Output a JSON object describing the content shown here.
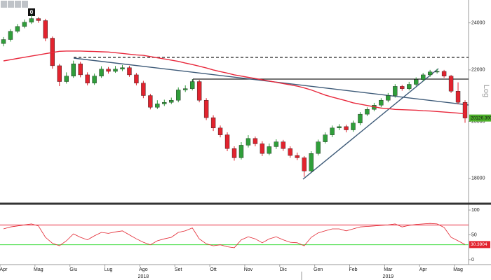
{
  "toolbar": {
    "badge": "0"
  },
  "chart_data": [
    {
      "type": "candlestick",
      "x": [
        "Apr",
        null,
        null,
        null,
        null,
        "Mag",
        null,
        null,
        null,
        null,
        "Giu",
        null,
        null,
        null,
        null,
        "Lug",
        null,
        null,
        null,
        null,
        "Ago",
        null,
        null,
        null,
        null,
        "Set",
        null,
        null,
        null,
        null,
        "Ott",
        null,
        null,
        null,
        null,
        "Nov",
        null,
        null,
        null,
        null,
        "Dic",
        null,
        null,
        null,
        null,
        "Gen",
        null,
        null,
        null,
        null,
        "Feb",
        null,
        null,
        null,
        null,
        "Mar",
        null,
        null,
        null,
        null,
        "Apr",
        null,
        null,
        null,
        null,
        "Mag",
        null
      ],
      "x_years": [
        null,
        null,
        null,
        null,
        null,
        null,
        null,
        null,
        null,
        null,
        null,
        null,
        null,
        null,
        null,
        null,
        null,
        null,
        null,
        null,
        "2018",
        null,
        null,
        null,
        null,
        null,
        null,
        null,
        null,
        null,
        null,
        null,
        null,
        null,
        null,
        null,
        null,
        null,
        null,
        null,
        null,
        null,
        null,
        null,
        null,
        null,
        null,
        null,
        null,
        null,
        null,
        null,
        null,
        null,
        null,
        "2019",
        null,
        null,
        null,
        null,
        null,
        null,
        null,
        null,
        null,
        null,
        null
      ],
      "open": [
        23100,
        23270,
        23630,
        23840,
        24030,
        24190,
        24100,
        23330,
        22170,
        21530,
        21750,
        22250,
        21800,
        21470,
        21750,
        22030,
        21940,
        22030,
        22090,
        21800,
        21470,
        20980,
        20530,
        20660,
        20720,
        20800,
        21200,
        21250,
        21530,
        20800,
        20140,
        19760,
        19510,
        19020,
        18700,
        19140,
        19380,
        19190,
        18850,
        19090,
        19260,
        19020,
        18780,
        18700,
        18250,
        18850,
        19260,
        19510,
        19760,
        19810,
        19690,
        19940,
        20270,
        20450,
        20610,
        20800,
        20980,
        21340,
        21250,
        21420,
        21610,
        21800,
        21920,
        21940,
        21750,
        21150,
        20720
      ],
      "high": [
        23380,
        23720,
        23950,
        24150,
        24350,
        24260,
        24180,
        23400,
        22250,
        21900,
        22380,
        22330,
        21900,
        21850,
        22150,
        22120,
        22160,
        22200,
        22170,
        21880,
        21560,
        21050,
        20800,
        20820,
        20900,
        21300,
        21380,
        21620,
        21600,
        20880,
        20230,
        19850,
        19600,
        19100,
        19250,
        19500,
        19450,
        19280,
        19200,
        19350,
        19330,
        19100,
        18880,
        18760,
        18930,
        19340,
        19600,
        19850,
        19900,
        19880,
        20030,
        20350,
        20530,
        20700,
        20880,
        21080,
        21430,
        21400,
        21520,
        21700,
        21880,
        22000,
        22040,
        22000,
        21800,
        21500,
        20800
      ],
      "low": [
        22980,
        23180,
        23550,
        23760,
        23950,
        24000,
        23200,
        22050,
        21350,
        21450,
        21680,
        21700,
        21380,
        21400,
        21680,
        21850,
        21880,
        21950,
        21720,
        21380,
        20880,
        20450,
        20460,
        20580,
        20650,
        20720,
        21120,
        21180,
        20720,
        20050,
        19650,
        19420,
        18930,
        18600,
        18640,
        19060,
        19100,
        18760,
        18790,
        19010,
        18940,
        18700,
        18620,
        18050,
        18200,
        18780,
        19200,
        19430,
        19680,
        19600,
        19620,
        19860,
        20200,
        20380,
        20530,
        20720,
        20900,
        21170,
        21180,
        21350,
        21540,
        21720,
        21850,
        21680,
        21080,
        20640,
        19950
      ],
      "close": [
        23270,
        23630,
        23840,
        24030,
        24190,
        24100,
        23330,
        22170,
        21530,
        21750,
        22250,
        21800,
        21470,
        21750,
        22030,
        21940,
        22030,
        22090,
        21800,
        21470,
        20980,
        20530,
        20660,
        20720,
        20800,
        21200,
        21250,
        21530,
        20800,
        20140,
        19760,
        19510,
        19020,
        18700,
        19140,
        19380,
        19190,
        18850,
        19090,
        19260,
        19020,
        18780,
        18700,
        18250,
        18850,
        19260,
        19510,
        19760,
        19810,
        19690,
        19940,
        20270,
        20450,
        20610,
        20800,
        20980,
        21340,
        21250,
        21420,
        21610,
        21800,
        21920,
        21940,
        21750,
        21150,
        20720,
        20126.3906
      ],
      "up_color": "#2f9e3a",
      "down_color": "#e2232e",
      "last_color": "#4caf2a",
      "overlays": [
        {
          "color": "#e8283c",
          "values": [
            22370,
            22420,
            22470,
            22520,
            22570,
            22620,
            22670,
            22720,
            22770,
            22780,
            22780,
            22780,
            22770,
            22760,
            22750,
            22740,
            22710,
            22680,
            22650,
            22620,
            22600,
            22550,
            22500,
            22450,
            22400,
            22350,
            22280,
            22220,
            22150,
            22080,
            22000,
            21930,
            21870,
            21800,
            21750,
            21700,
            21650,
            21600,
            21550,
            21500,
            21450,
            21400,
            21350,
            21280,
            21200,
            21100,
            21000,
            20920,
            20850,
            20780,
            20700,
            20650,
            20600,
            20550,
            20500,
            20480,
            20450,
            20440,
            20430,
            20420,
            20400,
            20390,
            20370,
            20350,
            20330,
            20310,
            20280
          ]
        }
      ],
      "log_scale": true,
      "scale_label": "Log",
      "ylim": [
        17200,
        24650
      ],
      "yticks": [
        18000,
        20000,
        22000,
        24000
      ]
    },
    {
      "type": "line",
      "series": [
        {
          "color": "#e2232e",
          "values": [
            62,
            66,
            68,
            70,
            72,
            68,
            45,
            33,
            28,
            38,
            52,
            45,
            40,
            48,
            55,
            53,
            56,
            58,
            50,
            42,
            35,
            30,
            38,
            42,
            45,
            55,
            58,
            64,
            42,
            32,
            28,
            30,
            26,
            24,
            40,
            46,
            42,
            34,
            42,
            46,
            40,
            35,
            34,
            28,
            45,
            54,
            58,
            62,
            62,
            58,
            62,
            66,
            67,
            68,
            69,
            70,
            72,
            66,
            69,
            71,
            72,
            73,
            72,
            65,
            45,
            38,
            30.3904
          ]
        }
      ],
      "hlines": [
        {
          "value": 70,
          "color": "#e8283c"
        },
        {
          "value": 30,
          "color": "#3ddc3d"
        }
      ],
      "ylim": [
        -10,
        110
      ],
      "yticks": [
        0,
        50,
        100
      ]
    }
  ]
}
